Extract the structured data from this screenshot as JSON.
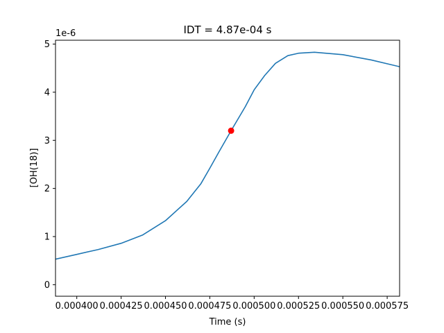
{
  "chart_data": {
    "type": "line",
    "title": "IDT = 4.87e-04 s",
    "xlabel": "Time (s)",
    "ylabel": "[OH(18)]",
    "y_offset_text": "1e-6",
    "xlim": [
      0.000388,
      0.000582
    ],
    "ylim": [
      -0.24,
      5.08
    ],
    "x_ticks": [
      0.0004,
      0.000425,
      0.00045,
      0.000475,
      0.0005,
      0.000525,
      0.00055,
      0.000575
    ],
    "x_tick_labels": [
      "0.000400",
      "0.000425",
      "0.000450",
      "0.000475",
      "0.000500",
      "0.000525",
      "0.000550",
      "0.000575"
    ],
    "y_ticks": [
      0,
      1,
      2,
      3,
      4,
      5
    ],
    "y_tick_labels": [
      "0",
      "1",
      "2",
      "3",
      "4",
      "5"
    ],
    "grid": false,
    "series": [
      {
        "color": "#1f77b4",
        "x": [
          0.000388,
          0.0004,
          0.000412,
          0.000425,
          0.000437,
          0.00045,
          0.000462,
          0.00047,
          0.000475,
          0.00048,
          0.000487,
          0.000495,
          0.0005,
          0.000506,
          0.000512,
          0.000519,
          0.000525,
          0.000534,
          0.00055,
          0.000566,
          0.000582
        ],
        "y": [
          0.53,
          0.63,
          0.73,
          0.86,
          1.03,
          1.33,
          1.73,
          2.1,
          2.42,
          2.75,
          3.2,
          3.7,
          4.05,
          4.35,
          4.6,
          4.76,
          4.81,
          4.83,
          4.78,
          4.67,
          4.53
        ]
      }
    ],
    "markers": [
      {
        "x": 0.000487,
        "y": 3.2,
        "color": "#ff0000"
      }
    ]
  }
}
